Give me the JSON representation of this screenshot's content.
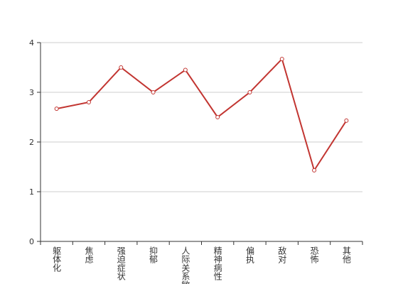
{
  "chart_data": {
    "type": "line",
    "categories": [
      "躯体化",
      "焦虑",
      "强迫症状",
      "抑郁",
      "人际关系敏感",
      "精神病性",
      "偏执",
      "敌对",
      "恐怖",
      "其他"
    ],
    "values": [
      2.67,
      2.8,
      3.5,
      3.0,
      3.45,
      2.5,
      3.0,
      3.67,
      1.43,
      2.43
    ],
    "color": "#c23531",
    "ylim": [
      0,
      4
    ],
    "yticks": [
      0,
      1,
      2,
      3,
      4
    ],
    "grid": true
  }
}
